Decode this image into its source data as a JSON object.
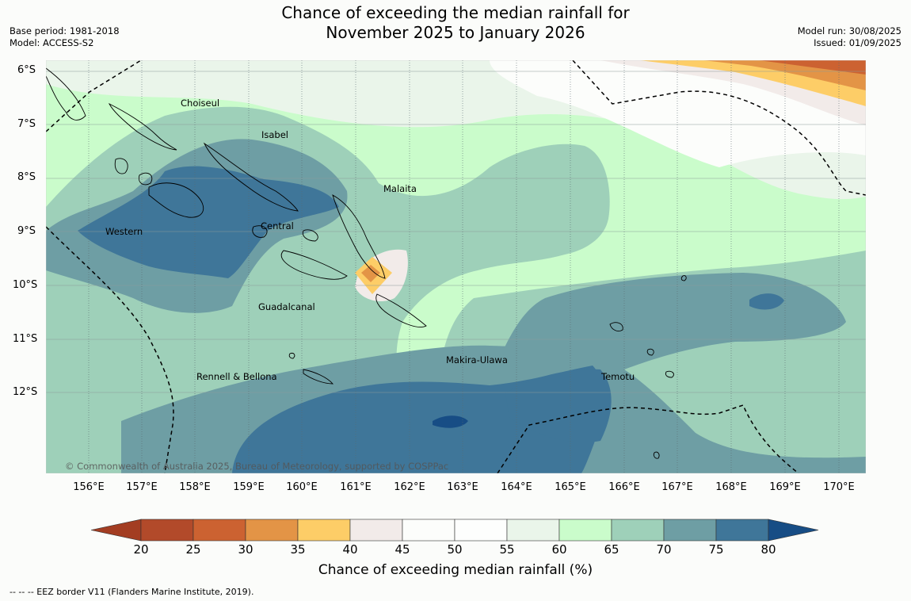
{
  "header": {
    "title_line1": "Chance of exceeding the median rainfall for",
    "title_line2": "November 2025 to January 2026",
    "base_period": "Base period: 1981-2018",
    "model": "Model: ACCESS-S2",
    "model_run": "Model run: 30/08/2025",
    "issued": "Issued: 01/09/2025"
  },
  "map": {
    "lat_labels": [
      "6°S",
      "7°S",
      "8°S",
      "9°S",
      "10°S",
      "11°S",
      "12°S"
    ],
    "lon_labels": [
      "156°E",
      "157°E",
      "158°E",
      "159°E",
      "160°E",
      "161°E",
      "162°E",
      "163°E",
      "164°E",
      "165°E",
      "166°E",
      "167°E",
      "168°E",
      "169°E",
      "170°E"
    ],
    "regions": [
      "Choiseul",
      "Isabel",
      "Malaita",
      "Western",
      "Central",
      "Guadalcanal",
      "Makira-Ulawa",
      "Temotu",
      "Rennell & Bellona"
    ],
    "copyright": "© Commonwealth of Australia 2025, Bureau of Meteorology, supported by COSPPac"
  },
  "colorbar": {
    "ticks": [
      "20",
      "25",
      "30",
      "35",
      "40",
      "45",
      "50",
      "55",
      "60",
      "65",
      "70",
      "75",
      "80"
    ],
    "label": "Chance of exceeding median rainfall (%)",
    "colors": [
      "#a33d22",
      "#b24a2a",
      "#cc6231",
      "#e39446",
      "#fdcd67",
      "#f2ebe9",
      "#fcfdfb",
      "#fdfefd",
      "#eaf5ea",
      "#cafccb",
      "#9ed0b9",
      "#6e9ea4",
      "#3f7699",
      "#174d85"
    ]
  },
  "footer": {
    "eez_note": "--  --  -- EEZ border V11 (Flanders Marine Institute, 2019)."
  }
}
